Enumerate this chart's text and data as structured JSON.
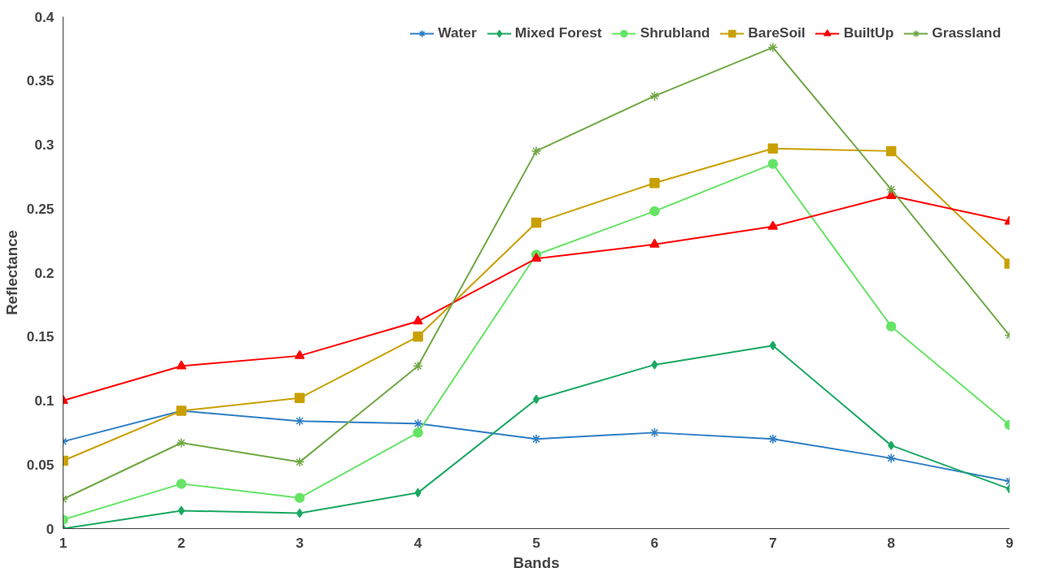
{
  "chart_data": {
    "type": "line",
    "xlabel": "Bands",
    "ylabel": "Reflectance",
    "x": [
      1,
      2,
      3,
      4,
      5,
      6,
      7,
      8,
      9
    ],
    "xlim": [
      1,
      9
    ],
    "xticks": [
      1,
      2,
      3,
      4,
      5,
      6,
      7,
      8,
      9
    ],
    "ylim": [
      0,
      0.4
    ],
    "yticks": [
      0,
      0.05,
      0.1,
      0.15,
      0.2,
      0.25,
      0.3,
      0.35,
      0.4
    ],
    "grid": false,
    "legend": "top right",
    "line_style": "solid",
    "series": [
      {
        "name": "Water",
        "color": "#2e7ec4",
        "marker": "cross",
        "values": [
          0.068,
          0.092,
          0.084,
          0.082,
          0.07,
          0.075,
          0.07,
          0.055,
          0.037
        ]
      },
      {
        "name": "Mixed Forest",
        "color": "#1aa861",
        "marker": "diamond",
        "values": [
          0,
          0.014,
          0.012,
          0.028,
          0.101,
          0.128,
          0.143,
          0.065,
          0.031
        ]
      },
      {
        "name": "Shrubland",
        "color": "#66e466",
        "marker": "circle",
        "values": [
          0.007,
          0.035,
          0.024,
          0.075,
          0.214,
          0.248,
          0.285,
          0.158,
          0.081
        ]
      },
      {
        "name": "BareSoil",
        "color": "#c9a000",
        "marker": "square",
        "values": [
          0.053,
          0.092,
          0.102,
          0.15,
          0.239,
          0.27,
          0.297,
          0.295,
          0.207
        ]
      },
      {
        "name": "BuiltUp",
        "color": "#ff0000",
        "marker": "triangle",
        "values": [
          0.1,
          0.127,
          0.135,
          0.162,
          0.211,
          0.222,
          0.236,
          0.26,
          0.24
        ]
      },
      {
        "name": "Grassland",
        "color": "#70a845",
        "marker": "cross",
        "values": [
          0.023,
          0.067,
          0.052,
          0.127,
          0.295,
          0.338,
          0.376,
          0.265,
          0.151
        ]
      }
    ]
  }
}
